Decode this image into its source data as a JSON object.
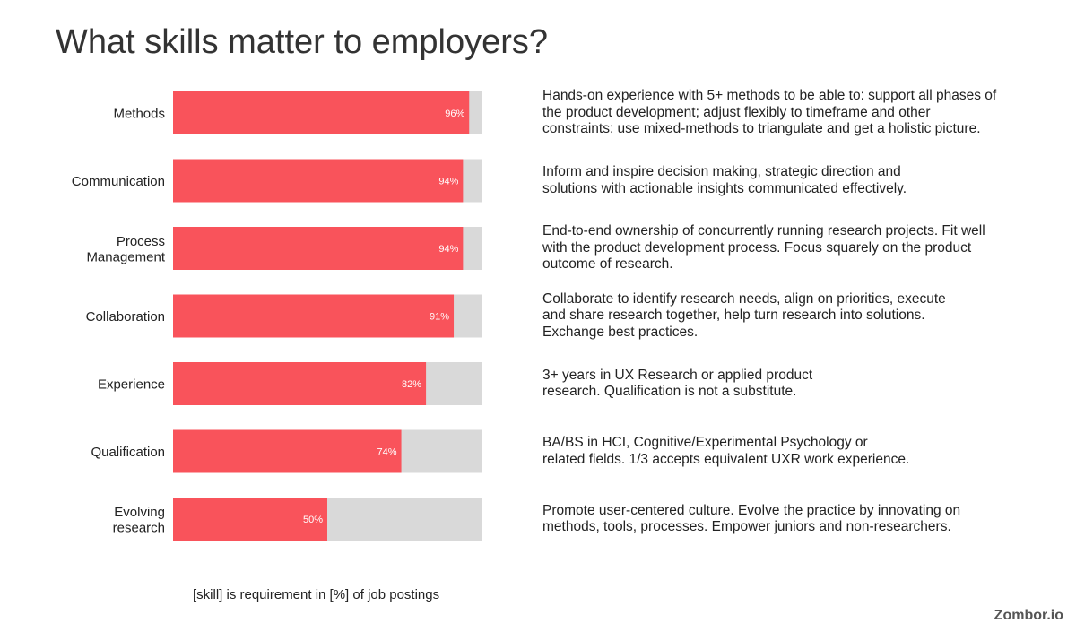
{
  "title": "What skills matter to employers?",
  "footnote": "[skill] is requirement in [%] of job postings",
  "brand": "Zombor.io",
  "colors": {
    "bar": "#f9535b",
    "track": "#d9d9d9",
    "label": "#222222",
    "value_label": "#ffffff"
  },
  "chart_data": {
    "type": "bar",
    "orientation": "horizontal",
    "categories": [
      [
        "Methods"
      ],
      [
        "Communication"
      ],
      [
        "Process",
        "Management"
      ],
      [
        "Collaboration"
      ],
      [
        "Experience"
      ],
      [
        "Qualification"
      ],
      [
        "Evolving",
        "research"
      ]
    ],
    "values": [
      96,
      94,
      94,
      91,
      82,
      74,
      50
    ],
    "value_labels": [
      "96%",
      "94%",
      "94%",
      "91%",
      "82%",
      "74%",
      "50%"
    ],
    "xlim": [
      0,
      100
    ],
    "unit": "%"
  },
  "descriptions": [
    "Hands-on experience with 5+ methods to be able to: support all phases of\nthe product development; adjust flexibly to timeframe and other\nconstraints; use mixed-methods to triangulate and get a holistic picture.",
    "Inform and inspire decision making, strategic direction and\nsolutions with actionable insights communicated effectively.",
    "End-to-end ownership of concurrently running research projects. Fit well\nwith the product development process. Focus squarely on the product\noutcome of research.",
    "Collaborate to identify research needs, align on priorities, execute\nand share research together, help turn research into solutions.\nExchange best practices.",
    "3+ years in UX Research or applied product\nresearch. Qualification is not a substitute.",
    "BA/BS in HCI, Cognitive/Experimental Psychology or\nrelated fields. 1/3 accepts equivalent UXR work experience.",
    "Promote user-centered culture. Evolve the practice by innovating on\nmethods, tools, processes. Empower juniors and non-researchers."
  ]
}
